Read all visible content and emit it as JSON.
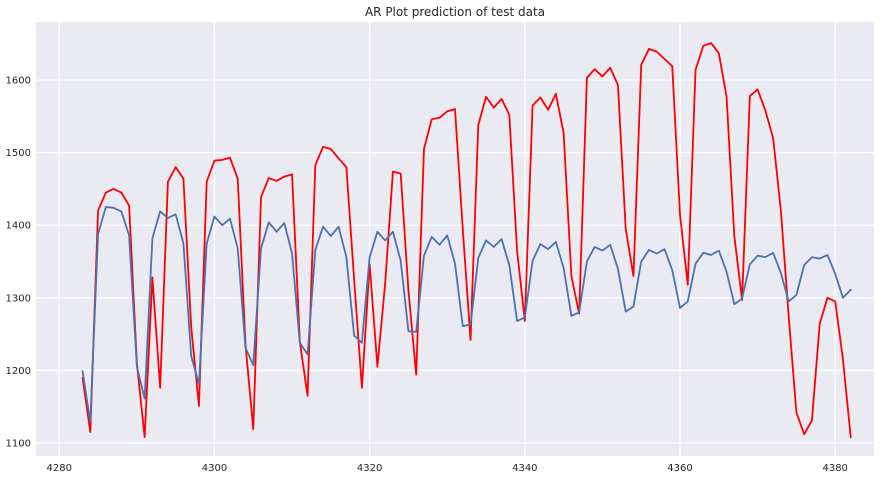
{
  "chart_data": {
    "type": "line",
    "title": "AR Plot prediction of test data",
    "xlabel": "",
    "ylabel": "",
    "xlim": [
      4277,
      4385
    ],
    "ylim": [
      1082,
      1680
    ],
    "x_ticks": [
      4280,
      4300,
      4320,
      4340,
      4360,
      4380
    ],
    "y_ticks": [
      1100,
      1200,
      1300,
      1400,
      1500,
      1600
    ],
    "grid": true,
    "background": "#eaeaf2",
    "series": [
      {
        "color": "#ff0000",
        "x": [
          4283,
          4284,
          4285,
          4286,
          4287,
          4288,
          4289,
          4290,
          4291,
          4292,
          4293,
          4294,
          4295,
          4296,
          4297,
          4298,
          4299,
          4300,
          4301,
          4302,
          4303,
          4304,
          4305,
          4306,
          4307,
          4308,
          4309,
          4310,
          4311,
          4312,
          4313,
          4314,
          4315,
          4316,
          4317,
          4318,
          4319,
          4320,
          4321,
          4322,
          4323,
          4324,
          4325,
          4326,
          4327,
          4328,
          4329,
          4330,
          4331,
          4332,
          4333,
          4334,
          4335,
          4336,
          4337,
          4338,
          4339,
          4340,
          4341,
          4342,
          4343,
          4344,
          4345,
          4346,
          4347,
          4348,
          4349,
          4350,
          4351,
          4352,
          4353,
          4354,
          4355,
          4356,
          4357,
          4358,
          4359,
          4360,
          4361,
          4362,
          4363,
          4364,
          4365,
          4366,
          4367,
          4368,
          4369,
          4370,
          4371,
          4372,
          4373,
          4374,
          4375,
          4376,
          4377,
          4378,
          4379,
          4380,
          4381,
          4382
        ],
        "y": [
          1190,
          1115,
          1420,
          1445,
          1450,
          1445,
          1427,
          1210,
          1108,
          1328,
          1176,
          1460,
          1480,
          1464,
          1260,
          1151,
          1460,
          1489,
          1490,
          1493,
          1464,
          1235,
          1119,
          1439,
          1465,
          1461,
          1467,
          1470,
          1240,
          1165,
          1483,
          1508,
          1505,
          1492,
          1480,
          1325,
          1176,
          1346,
          1205,
          1320,
          1474,
          1471,
          1310,
          1194,
          1505,
          1546,
          1548,
          1557,
          1560,
          1395,
          1242,
          1538,
          1577,
          1562,
          1574,
          1552,
          1365,
          1268,
          1565,
          1576,
          1559,
          1581,
          1527,
          1330,
          1278,
          1603,
          1615,
          1605,
          1617,
          1593,
          1395,
          1330,
          1621,
          1643,
          1639,
          1629,
          1619,
          1414,
          1318,
          1614,
          1647,
          1651,
          1637,
          1577,
          1385,
          1297,
          1578,
          1587,
          1558,
          1520,
          1420,
          1275,
          1142,
          1112,
          1131,
          1264,
          1300,
          1295,
          1215,
          1108
        ]
      },
      {
        "color": "#4c72b0",
        "x": [
          4283,
          4284,
          4285,
          4286,
          4287,
          4288,
          4289,
          4290,
          4291,
          4292,
          4293,
          4294,
          4295,
          4296,
          4297,
          4298,
          4299,
          4300,
          4301,
          4302,
          4303,
          4304,
          4305,
          4306,
          4307,
          4308,
          4309,
          4310,
          4311,
          4312,
          4313,
          4314,
          4315,
          4316,
          4317,
          4318,
          4319,
          4320,
          4321,
          4322,
          4323,
          4324,
          4325,
          4326,
          4327,
          4328,
          4329,
          4330,
          4331,
          4332,
          4333,
          4334,
          4335,
          4336,
          4337,
          4338,
          4339,
          4340,
          4341,
          4342,
          4343,
          4344,
          4345,
          4346,
          4347,
          4348,
          4349,
          4350,
          4351,
          4352,
          4353,
          4354,
          4355,
          4356,
          4357,
          4358,
          4359,
          4360,
          4361,
          4362,
          4363,
          4364,
          4365,
          4366,
          4367,
          4368,
          4369,
          4370,
          4371,
          4372,
          4373,
          4374,
          4375,
          4376,
          4377,
          4378,
          4379,
          4380,
          4381,
          4382
        ],
        "y": [
          1199,
          1129,
          1388,
          1425,
          1424,
          1419,
          1386,
          1205,
          1161,
          1382,
          1419,
          1410,
          1415,
          1375,
          1220,
          1181,
          1375,
          1412,
          1400,
          1409,
          1368,
          1231,
          1207,
          1368,
          1404,
          1391,
          1403,
          1361,
          1238,
          1222,
          1366,
          1398,
          1385,
          1398,
          1356,
          1248,
          1238,
          1356,
          1391,
          1379,
          1391,
          1351,
          1254,
          1253,
          1358,
          1384,
          1373,
          1386,
          1347,
          1261,
          1263,
          1355,
          1379,
          1370,
          1381,
          1345,
          1268,
          1273,
          1351,
          1374,
          1367,
          1377,
          1341,
          1275,
          1280,
          1350,
          1370,
          1365,
          1373,
          1340,
          1281,
          1288,
          1350,
          1366,
          1361,
          1367,
          1338,
          1286,
          1295,
          1347,
          1362,
          1359,
          1365,
          1336,
          1291,
          1299,
          1346,
          1358,
          1356,
          1362,
          1334,
          1295,
          1304,
          1345,
          1356,
          1354,
          1359,
          1333,
          1300,
          1311
        ]
      }
    ]
  }
}
